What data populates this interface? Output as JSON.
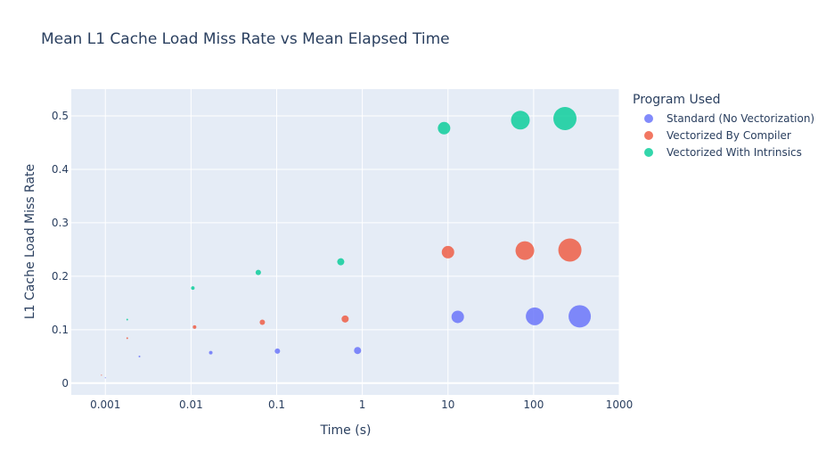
{
  "chart_data": {
    "type": "scatter",
    "title": "Mean L1 Cache Load Miss Rate vs Mean Elapsed Time",
    "xlabel": "Time (s)",
    "ylabel": "L1 Cache Load Miss Rate",
    "x_scale": "log",
    "xlim": [
      0.0004,
      1000
    ],
    "ylim": [
      -0.022,
      0.55
    ],
    "x_ticks": [
      0.001,
      0.01,
      0.1,
      1,
      10,
      100,
      1000
    ],
    "x_tick_labels": [
      "0.001",
      "0.01",
      "0.1",
      "1",
      "10",
      "100",
      "1000"
    ],
    "y_ticks": [
      0,
      0.1,
      0.2,
      0.3,
      0.4,
      0.5
    ],
    "y_tick_labels": [
      "0",
      "0.1",
      "0.2",
      "0.3",
      "0.4",
      "0.5"
    ],
    "grid": true,
    "legend_title": "Program Used",
    "legend_position": "top-right",
    "series": [
      {
        "name": "Standard (No Vectorization)",
        "color": "#636efa",
        "points": [
          {
            "x": 0.001,
            "y": 0.01,
            "size": 1
          },
          {
            "x": 0.0025,
            "y": 0.05,
            "size": 2
          },
          {
            "x": 0.017,
            "y": 0.057,
            "size": 4
          },
          {
            "x": 0.102,
            "y": 0.06,
            "size": 6
          },
          {
            "x": 0.88,
            "y": 0.061,
            "size": 8
          },
          {
            "x": 13,
            "y": 0.124,
            "size": 14
          },
          {
            "x": 103,
            "y": 0.125,
            "size": 20
          },
          {
            "x": 345,
            "y": 0.125,
            "size": 25
          }
        ]
      },
      {
        "name": "Vectorized By Compiler",
        "color": "#ef553b",
        "points": [
          {
            "x": 0.0009,
            "y": 0.015,
            "size": 1
          },
          {
            "x": 0.0018,
            "y": 0.084,
            "size": 2
          },
          {
            "x": 0.011,
            "y": 0.105,
            "size": 4
          },
          {
            "x": 0.068,
            "y": 0.114,
            "size": 6
          },
          {
            "x": 0.63,
            "y": 0.12,
            "size": 8
          },
          {
            "x": 10,
            "y": 0.245,
            "size": 14
          },
          {
            "x": 79,
            "y": 0.248,
            "size": 21
          },
          {
            "x": 265,
            "y": 0.249,
            "size": 26
          }
        ]
      },
      {
        "name": "Vectorized With Intrinsics",
        "color": "#00cc96",
        "points": [
          {
            "x": 0.0018,
            "y": 0.119,
            "size": 2
          },
          {
            "x": 0.0105,
            "y": 0.178,
            "size": 4
          },
          {
            "x": 0.061,
            "y": 0.207,
            "size": 6
          },
          {
            "x": 0.56,
            "y": 0.227,
            "size": 8
          },
          {
            "x": 9,
            "y": 0.477,
            "size": 14
          },
          {
            "x": 70,
            "y": 0.492,
            "size": 21
          },
          {
            "x": 232,
            "y": 0.495,
            "size": 26
          }
        ]
      }
    ]
  }
}
